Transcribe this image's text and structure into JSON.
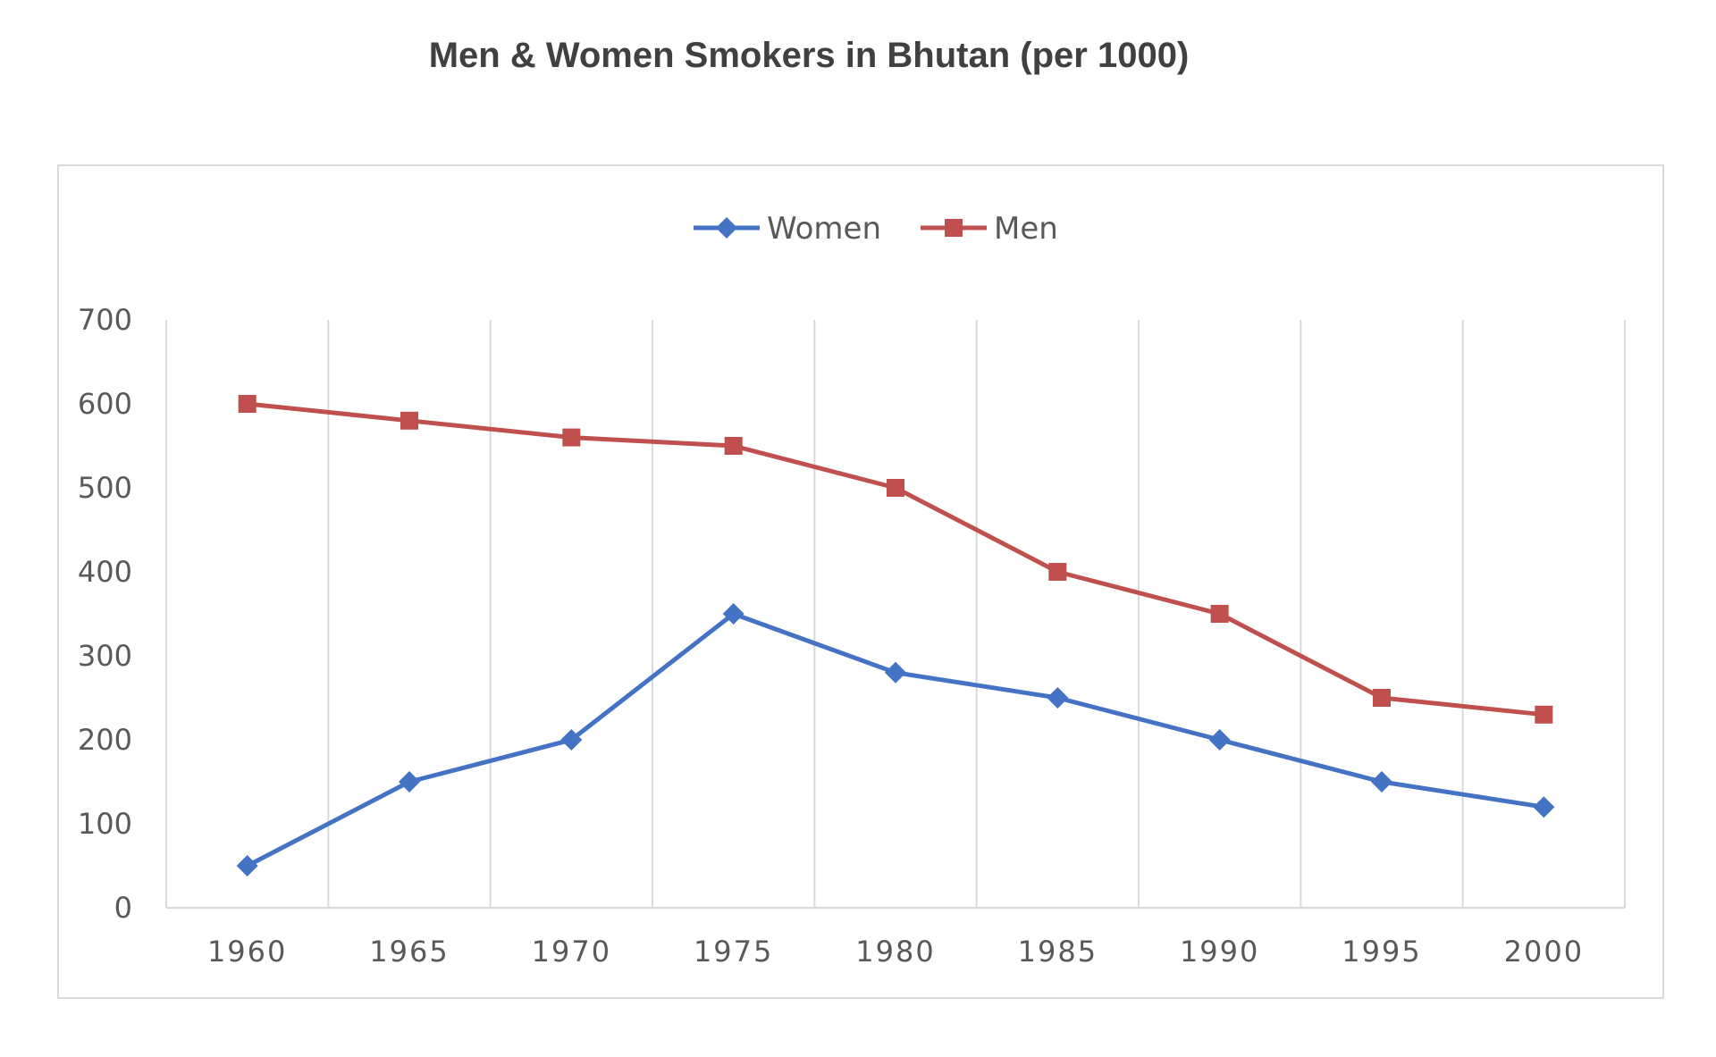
{
  "chart_data": {
    "type": "line",
    "title": "Men & Women Smokers in Bhutan (per 1000)",
    "xlabel": "",
    "ylabel": "",
    "categories": [
      "1960",
      "1965",
      "1970",
      "1975",
      "1980",
      "1985",
      "1990",
      "1995",
      "2000"
    ],
    "ylim": [
      0,
      700
    ],
    "yticks": [
      "0",
      "100",
      "200",
      "300",
      "400",
      "500",
      "600",
      "700"
    ],
    "grid": "vertical",
    "legend_position": "top",
    "series": [
      {
        "name": "Women",
        "color": "#4472c4",
        "marker": "diamond",
        "values": [
          50,
          150,
          200,
          350,
          280,
          250,
          200,
          150,
          120
        ]
      },
      {
        "name": "Men",
        "color": "#c0504d",
        "marker": "square",
        "values": [
          600,
          580,
          560,
          550,
          500,
          400,
          350,
          250,
          230
        ]
      }
    ]
  }
}
